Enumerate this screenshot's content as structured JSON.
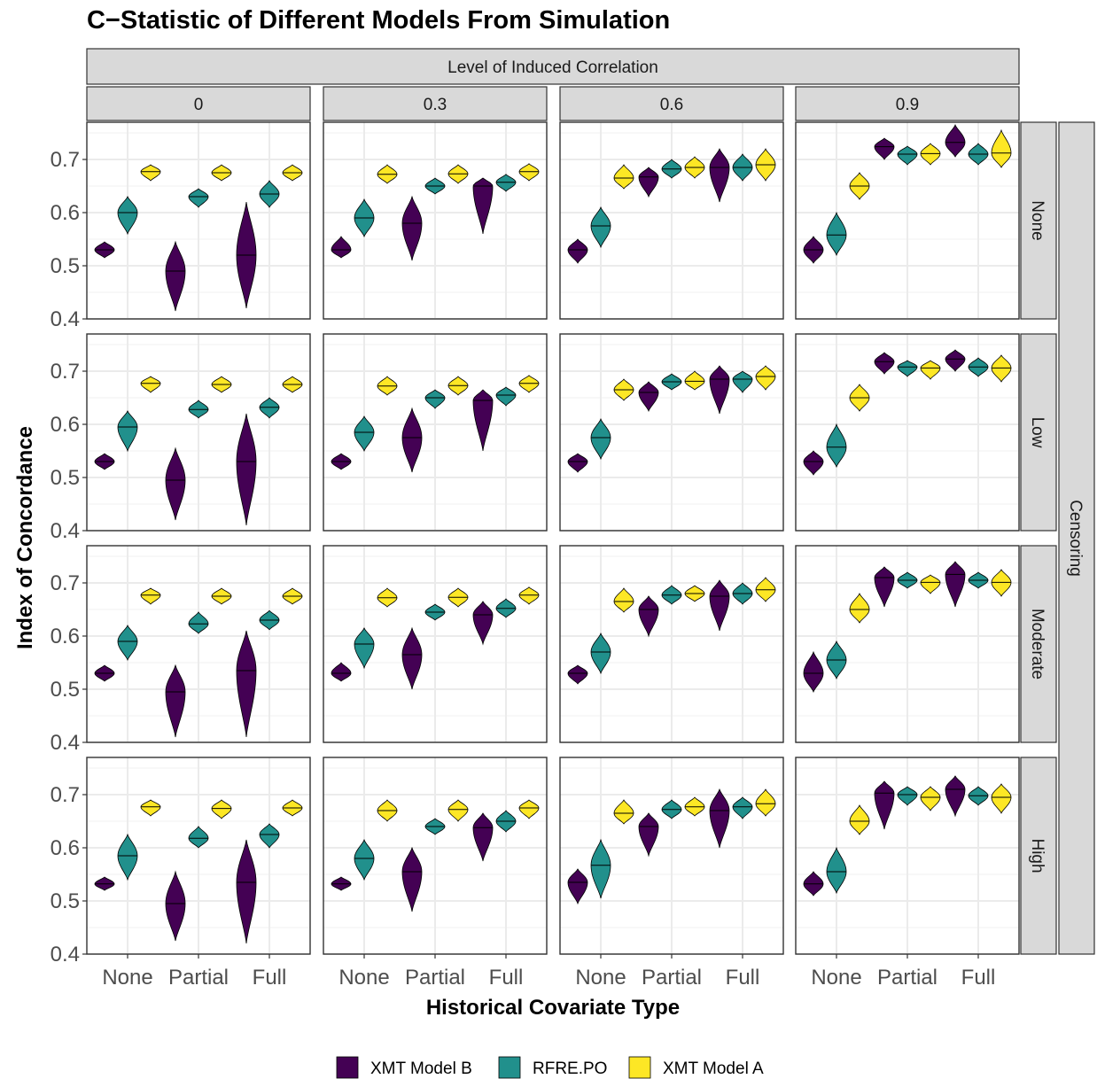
{
  "chart_data": {
    "type": "violin",
    "title": "C−Statistic of Different Models From Simulation",
    "xlabel": "Historical Covariate Type",
    "ylabel": "Index of Concordance",
    "facet_col_title": "Level of Induced Correlation",
    "facet_row_title": "Censoring",
    "facet_cols": [
      "0",
      "0.3",
      "0.6",
      "0.9"
    ],
    "facet_rows": [
      "None",
      "Low",
      "Moderate",
      "High"
    ],
    "categories": [
      "None",
      "Partial",
      "Full"
    ],
    "ylim": [
      0.4,
      0.77
    ],
    "yticks": [
      0.4,
      0.5,
      0.6,
      0.7
    ],
    "ytick_labels": [
      "0.4",
      "0.5",
      "0.6",
      "0.7"
    ],
    "grid": true,
    "legend_position": "bottom",
    "series": [
      {
        "name": "XMT Model B",
        "color": "#440154"
      },
      {
        "name": "RFRE.PO",
        "color": "#21908C"
      },
      {
        "name": "XMT Model A",
        "color": "#FDE725"
      }
    ],
    "panels": [
      [
        {
          "XMT Model B": [
            [
              0.53,
              0.515,
              0.545
            ],
            [
              0.49,
              0.415,
              0.545
            ],
            [
              0.52,
              0.42,
              0.62
            ]
          ],
          "RFRE.PO": [
            [
              0.6,
              0.56,
              0.63
            ],
            [
              0.63,
              0.61,
              0.645
            ],
            [
              0.635,
              0.61,
              0.66
            ]
          ],
          "XMT Model A": [
            [
              0.677,
              0.66,
              0.69
            ],
            [
              0.675,
              0.66,
              0.69
            ],
            [
              0.675,
              0.66,
              0.69
            ]
          ]
        },
        {
          "XMT Model B": [
            [
              0.53,
              0.515,
              0.555
            ],
            [
              0.58,
              0.51,
              0.63
            ],
            [
              0.65,
              0.56,
              0.665
            ]
          ],
          "RFRE.PO": [
            [
              0.59,
              0.555,
              0.625
            ],
            [
              0.65,
              0.635,
              0.665
            ],
            [
              0.657,
              0.64,
              0.672
            ]
          ],
          "XMT Model A": [
            [
              0.672,
              0.655,
              0.69
            ],
            [
              0.673,
              0.655,
              0.69
            ],
            [
              0.677,
              0.66,
              0.692
            ]
          ]
        },
        {
          "XMT Model B": [
            [
              0.53,
              0.505,
              0.55
            ],
            [
              0.667,
              0.63,
              0.685
            ],
            [
              0.685,
              0.62,
              0.72
            ]
          ],
          "RFRE.PO": [
            [
              0.575,
              0.535,
              0.61
            ],
            [
              0.682,
              0.665,
              0.7
            ],
            [
              0.685,
              0.66,
              0.71
            ]
          ],
          "XMT Model A": [
            [
              0.665,
              0.645,
              0.69
            ],
            [
              0.685,
              0.665,
              0.705
            ],
            [
              0.69,
              0.66,
              0.72
            ]
          ]
        },
        {
          "XMT Model B": [
            [
              0.53,
              0.505,
              0.555
            ],
            [
              0.724,
              0.7,
              0.74
            ],
            [
              0.732,
              0.705,
              0.765
            ]
          ],
          "RFRE.PO": [
            [
              0.558,
              0.52,
              0.6
            ],
            [
              0.71,
              0.69,
              0.725
            ],
            [
              0.71,
              0.69,
              0.73
            ]
          ],
          "XMT Model A": [
            [
              0.65,
              0.625,
              0.675
            ],
            [
              0.711,
              0.69,
              0.73
            ],
            [
              0.712,
              0.685,
              0.755
            ]
          ]
        }
      ],
      [
        {
          "XMT Model B": [
            [
              0.53,
              0.515,
              0.545
            ],
            [
              0.495,
              0.42,
              0.555
            ],
            [
              0.53,
              0.41,
              0.62
            ]
          ],
          "RFRE.PO": [
            [
              0.595,
              0.55,
              0.625
            ],
            [
              0.628,
              0.612,
              0.645
            ],
            [
              0.632,
              0.612,
              0.65
            ]
          ],
          "XMT Model A": [
            [
              0.677,
              0.66,
              0.69
            ],
            [
              0.675,
              0.66,
              0.69
            ],
            [
              0.675,
              0.66,
              0.69
            ]
          ]
        },
        {
          "XMT Model B": [
            [
              0.53,
              0.515,
              0.545
            ],
            [
              0.575,
              0.51,
              0.63
            ],
            [
              0.645,
              0.55,
              0.665
            ]
          ],
          "RFRE.PO": [
            [
              0.585,
              0.55,
              0.615
            ],
            [
              0.65,
              0.63,
              0.665
            ],
            [
              0.655,
              0.635,
              0.67
            ]
          ],
          "XMT Model A": [
            [
              0.672,
              0.655,
              0.69
            ],
            [
              0.673,
              0.655,
              0.69
            ],
            [
              0.677,
              0.66,
              0.692
            ]
          ]
        },
        {
          "XMT Model B": [
            [
              0.53,
              0.51,
              0.545
            ],
            [
              0.66,
              0.625,
              0.68
            ],
            [
              0.685,
              0.62,
              0.71
            ]
          ],
          "RFRE.PO": [
            [
              0.575,
              0.535,
              0.61
            ],
            [
              0.68,
              0.665,
              0.695
            ],
            [
              0.685,
              0.66,
              0.7
            ]
          ],
          "XMT Model A": [
            [
              0.665,
              0.645,
              0.685
            ],
            [
              0.681,
              0.665,
              0.7
            ],
            [
              0.69,
              0.665,
              0.71
            ]
          ]
        },
        {
          "XMT Model B": [
            [
              0.53,
              0.505,
              0.55
            ],
            [
              0.718,
              0.695,
              0.735
            ],
            [
              0.723,
              0.7,
              0.74
            ]
          ],
          "RFRE.PO": [
            [
              0.557,
              0.52,
              0.6
            ],
            [
              0.708,
              0.69,
              0.72
            ],
            [
              0.708,
              0.69,
              0.725
            ]
          ],
          "XMT Model A": [
            [
              0.65,
              0.625,
              0.675
            ],
            [
              0.706,
              0.685,
              0.72
            ],
            [
              0.706,
              0.68,
              0.73
            ]
          ]
        }
      ],
      [
        {
          "XMT Model B": [
            [
              0.53,
              0.515,
              0.545
            ],
            [
              0.495,
              0.41,
              0.545
            ],
            [
              0.535,
              0.41,
              0.61
            ]
          ],
          "RFRE.PO": [
            [
              0.59,
              0.555,
              0.62
            ],
            [
              0.623,
              0.605,
              0.645
            ],
            [
              0.63,
              0.612,
              0.648
            ]
          ],
          "XMT Model A": [
            [
              0.677,
              0.66,
              0.69
            ],
            [
              0.675,
              0.66,
              0.69
            ],
            [
              0.675,
              0.66,
              0.69
            ]
          ]
        },
        {
          "XMT Model B": [
            [
              0.53,
              0.515,
              0.55
            ],
            [
              0.565,
              0.5,
              0.615
            ],
            [
              0.64,
              0.585,
              0.665
            ]
          ],
          "RFRE.PO": [
            [
              0.585,
              0.54,
              0.615
            ],
            [
              0.645,
              0.63,
              0.66
            ],
            [
              0.652,
              0.635,
              0.67
            ]
          ],
          "XMT Model A": [
            [
              0.672,
              0.655,
              0.69
            ],
            [
              0.673,
              0.655,
              0.69
            ],
            [
              0.677,
              0.66,
              0.692
            ]
          ]
        },
        {
          "XMT Model B": [
            [
              0.53,
              0.51,
              0.545
            ],
            [
              0.65,
              0.6,
              0.675
            ],
            [
              0.675,
              0.61,
              0.705
            ]
          ],
          "RFRE.PO": [
            [
              0.57,
              0.53,
              0.605
            ],
            [
              0.677,
              0.66,
              0.695
            ],
            [
              0.68,
              0.66,
              0.7
            ]
          ],
          "XMT Model A": [
            [
              0.665,
              0.645,
              0.69
            ],
            [
              0.68,
              0.665,
              0.695
            ],
            [
              0.687,
              0.665,
              0.71
            ]
          ]
        },
        {
          "XMT Model B": [
            [
              0.53,
              0.495,
              0.57
            ],
            [
              0.71,
              0.655,
              0.73
            ],
            [
              0.716,
              0.655,
              0.74
            ]
          ],
          "RFRE.PO": [
            [
              0.555,
              0.52,
              0.59
            ],
            [
              0.705,
              0.69,
              0.72
            ],
            [
              0.705,
              0.69,
              0.72
            ]
          ],
          "XMT Model A": [
            [
              0.65,
              0.625,
              0.68
            ],
            [
              0.701,
              0.68,
              0.715
            ],
            [
              0.701,
              0.675,
              0.725
            ]
          ]
        }
      ],
      [
        {
          "XMT Model B": [
            [
              0.532,
              0.52,
              0.545
            ],
            [
              0.495,
              0.425,
              0.555
            ],
            [
              0.535,
              0.42,
              0.615
            ]
          ],
          "RFRE.PO": [
            [
              0.585,
              0.54,
              0.625
            ],
            [
              0.618,
              0.6,
              0.64
            ],
            [
              0.625,
              0.6,
              0.645
            ]
          ],
          "XMT Model A": [
            [
              0.677,
              0.66,
              0.69
            ],
            [
              0.674,
              0.655,
              0.69
            ],
            [
              0.675,
              0.66,
              0.69
            ]
          ]
        },
        {
          "XMT Model B": [
            [
              0.532,
              0.52,
              0.545
            ],
            [
              0.555,
              0.48,
              0.6
            ],
            [
              0.638,
              0.575,
              0.665
            ]
          ],
          "RFRE.PO": [
            [
              0.58,
              0.54,
              0.615
            ],
            [
              0.64,
              0.625,
              0.655
            ],
            [
              0.65,
              0.63,
              0.67
            ]
          ],
          "XMT Model A": [
            [
              0.67,
              0.65,
              0.69
            ],
            [
              0.672,
              0.65,
              0.69
            ],
            [
              0.675,
              0.655,
              0.69
            ]
          ]
        },
        {
          "XMT Model B": [
            [
              0.535,
              0.495,
              0.56
            ],
            [
              0.64,
              0.585,
              0.665
            ],
            [
              0.67,
              0.6,
              0.71
            ]
          ],
          "RFRE.PO": [
            [
              0.567,
              0.505,
              0.615
            ],
            [
              0.672,
              0.655,
              0.69
            ],
            [
              0.677,
              0.655,
              0.695
            ]
          ],
          "XMT Model A": [
            [
              0.665,
              0.645,
              0.69
            ],
            [
              0.677,
              0.66,
              0.695
            ],
            [
              0.683,
              0.66,
              0.71
            ]
          ]
        },
        {
          "XMT Model B": [
            [
              0.532,
              0.51,
              0.555
            ],
            [
              0.703,
              0.635,
              0.725
            ],
            [
              0.71,
              0.66,
              0.735
            ]
          ],
          "RFRE.PO": [
            [
              0.555,
              0.515,
              0.6
            ],
            [
              0.7,
              0.68,
              0.715
            ],
            [
              0.698,
              0.68,
              0.715
            ]
          ],
          "XMT Model A": [
            [
              0.65,
              0.625,
              0.68
            ],
            [
              0.695,
              0.67,
              0.715
            ],
            [
              0.695,
              0.665,
              0.72
            ]
          ]
        }
      ]
    ]
  }
}
